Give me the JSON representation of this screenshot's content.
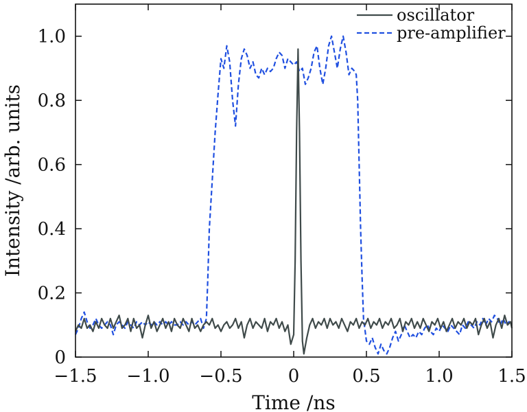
{
  "chart_data": {
    "type": "line",
    "title": "",
    "xlabel": "Time /ns",
    "ylabel": "Intensity /arb. units",
    "xlim": [
      -1.5,
      1.5
    ],
    "ylim": [
      0,
      1.1
    ],
    "xticks": [
      -1.5,
      -1.0,
      -0.5,
      0,
      0.5,
      1.0,
      1.5
    ],
    "xtick_labels": [
      "−1.5",
      "−1.0",
      "−0.5",
      "0",
      "0.5",
      "1.0",
      "1.5"
    ],
    "yticks": [
      0,
      0.2,
      0.4,
      0.6,
      0.8,
      1.0
    ],
    "ytick_labels": [
      "0",
      "0.2",
      "0.4",
      "0.6",
      "0.8",
      "1.0"
    ],
    "grid": false,
    "legend_position": "top-right",
    "series": [
      {
        "name": "oscillator",
        "color": "#3f4a4a",
        "style": "solid",
        "points": [
          [
            -1.5,
            0.08
          ],
          [
            -1.48,
            0.1
          ],
          [
            -1.46,
            0.09
          ],
          [
            -1.44,
            0.12
          ],
          [
            -1.42,
            0.09
          ],
          [
            -1.4,
            0.1
          ],
          [
            -1.38,
            0.08
          ],
          [
            -1.36,
            0.11
          ],
          [
            -1.34,
            0.09
          ],
          [
            -1.32,
            0.12
          ],
          [
            -1.3,
            0.1
          ],
          [
            -1.28,
            0.09
          ],
          [
            -1.26,
            0.12
          ],
          [
            -1.24,
            0.09
          ],
          [
            -1.22,
            0.11
          ],
          [
            -1.2,
            0.13
          ],
          [
            -1.18,
            0.09
          ],
          [
            -1.16,
            0.1
          ],
          [
            -1.14,
            0.12
          ],
          [
            -1.12,
            0.08
          ],
          [
            -1.1,
            0.12
          ],
          [
            -1.08,
            0.09
          ],
          [
            -1.06,
            0.1
          ],
          [
            -1.04,
            0.06
          ],
          [
            -1.02,
            0.1
          ],
          [
            -1.0,
            0.13
          ],
          [
            -0.98,
            0.09
          ],
          [
            -0.96,
            0.11
          ],
          [
            -0.94,
            0.08
          ],
          [
            -0.92,
            0.1
          ],
          [
            -0.9,
            0.12
          ],
          [
            -0.88,
            0.09
          ],
          [
            -0.86,
            0.11
          ],
          [
            -0.84,
            0.08
          ],
          [
            -0.82,
            0.12
          ],
          [
            -0.8,
            0.1
          ],
          [
            -0.78,
            0.09
          ],
          [
            -0.76,
            0.12
          ],
          [
            -0.74,
            0.1
          ],
          [
            -0.72,
            0.08
          ],
          [
            -0.7,
            0.12
          ],
          [
            -0.68,
            0.09
          ],
          [
            -0.66,
            0.1
          ],
          [
            -0.64,
            0.08
          ],
          [
            -0.62,
            0.1
          ],
          [
            -0.6,
            0.11
          ],
          [
            -0.58,
            0.1
          ],
          [
            -0.56,
            0.12
          ],
          [
            -0.54,
            0.09
          ],
          [
            -0.52,
            0.1
          ],
          [
            -0.5,
            0.08
          ],
          [
            -0.48,
            0.1
          ],
          [
            -0.46,
            0.11
          ],
          [
            -0.44,
            0.09
          ],
          [
            -0.42,
            0.1
          ],
          [
            -0.4,
            0.12
          ],
          [
            -0.38,
            0.09
          ],
          [
            -0.36,
            0.11
          ],
          [
            -0.34,
            0.06
          ],
          [
            -0.32,
            0.1
          ],
          [
            -0.3,
            0.12
          ],
          [
            -0.28,
            0.09
          ],
          [
            -0.26,
            0.11
          ],
          [
            -0.24,
            0.1
          ],
          [
            -0.22,
            0.09
          ],
          [
            -0.2,
            0.12
          ],
          [
            -0.18,
            0.08
          ],
          [
            -0.16,
            0.11
          ],
          [
            -0.14,
            0.1
          ],
          [
            -0.12,
            0.12
          ],
          [
            -0.1,
            0.09
          ],
          [
            -0.08,
            0.11
          ],
          [
            -0.06,
            0.08
          ],
          [
            -0.04,
            0.1
          ],
          [
            -0.02,
            0.04
          ],
          [
            0.0,
            0.07
          ],
          [
            0.01,
            0.3
          ],
          [
            0.02,
            0.7
          ],
          [
            0.03,
            0.96
          ],
          [
            0.04,
            0.7
          ],
          [
            0.05,
            0.3
          ],
          [
            0.06,
            0.05
          ],
          [
            0.07,
            0.01
          ],
          [
            0.09,
            0.06
          ],
          [
            0.11,
            0.1
          ],
          [
            0.13,
            0.12
          ],
          [
            0.15,
            0.09
          ],
          [
            0.17,
            0.11
          ],
          [
            0.19,
            0.1
          ],
          [
            0.21,
            0.12
          ],
          [
            0.23,
            0.09
          ],
          [
            0.25,
            0.12
          ],
          [
            0.27,
            0.1
          ],
          [
            0.29,
            0.11
          ],
          [
            0.31,
            0.09
          ],
          [
            0.33,
            0.12
          ],
          [
            0.35,
            0.1
          ],
          [
            0.37,
            0.08
          ],
          [
            0.39,
            0.11
          ],
          [
            0.41,
            0.1
          ],
          [
            0.43,
            0.12
          ],
          [
            0.45,
            0.09
          ],
          [
            0.47,
            0.11
          ],
          [
            0.49,
            0.1
          ],
          [
            0.51,
            0.12
          ],
          [
            0.53,
            0.09
          ],
          [
            0.55,
            0.11
          ],
          [
            0.57,
            0.1
          ],
          [
            0.59,
            0.12
          ],
          [
            0.61,
            0.09
          ],
          [
            0.63,
            0.11
          ],
          [
            0.65,
            0.1
          ],
          [
            0.67,
            0.12
          ],
          [
            0.69,
            0.09
          ],
          [
            0.71,
            0.1
          ],
          [
            0.73,
            0.12
          ],
          [
            0.75,
            0.08
          ],
          [
            0.77,
            0.11
          ],
          [
            0.79,
            0.1
          ],
          [
            0.81,
            0.12
          ],
          [
            0.83,
            0.09
          ],
          [
            0.85,
            0.11
          ],
          [
            0.87,
            0.09
          ],
          [
            0.89,
            0.12
          ],
          [
            0.91,
            0.1
          ],
          [
            0.93,
            0.08
          ],
          [
            0.95,
            0.11
          ],
          [
            0.97,
            0.1
          ],
          [
            0.99,
            0.12
          ],
          [
            1.01,
            0.09
          ],
          [
            1.03,
            0.11
          ],
          [
            1.05,
            0.08
          ],
          [
            1.07,
            0.1
          ],
          [
            1.09,
            0.12
          ],
          [
            1.11,
            0.09
          ],
          [
            1.13,
            0.11
          ],
          [
            1.15,
            0.1
          ],
          [
            1.17,
            0.12
          ],
          [
            1.19,
            0.09
          ],
          [
            1.21,
            0.11
          ],
          [
            1.23,
            0.1
          ],
          [
            1.25,
            0.12
          ],
          [
            1.27,
            0.07
          ],
          [
            1.29,
            0.1
          ],
          [
            1.31,
            0.12
          ],
          [
            1.33,
            0.09
          ],
          [
            1.35,
            0.11
          ],
          [
            1.37,
            0.06
          ],
          [
            1.39,
            0.1
          ],
          [
            1.41,
            0.12
          ],
          [
            1.43,
            0.09
          ],
          [
            1.45,
            0.13
          ],
          [
            1.47,
            0.1
          ],
          [
            1.49,
            0.11
          ],
          [
            1.5,
            0.09
          ]
        ]
      },
      {
        "name": "pre-amplifier",
        "color": "#1f4fe0",
        "style": "dashed",
        "points": [
          [
            -1.5,
            0.07
          ],
          [
            -1.48,
            0.09
          ],
          [
            -1.46,
            0.12
          ],
          [
            -1.44,
            0.14
          ],
          [
            -1.42,
            0.11
          ],
          [
            -1.4,
            0.09
          ],
          [
            -1.38,
            0.1
          ],
          [
            -1.36,
            0.12
          ],
          [
            -1.34,
            0.1
          ],
          [
            -1.32,
            0.09
          ],
          [
            -1.3,
            0.1
          ],
          [
            -1.28,
            0.11
          ],
          [
            -1.26,
            0.1
          ],
          [
            -1.24,
            0.07
          ],
          [
            -1.22,
            0.1
          ],
          [
            -1.2,
            0.11
          ],
          [
            -1.18,
            0.1
          ],
          [
            -1.16,
            0.09
          ],
          [
            -1.14,
            0.11
          ],
          [
            -1.12,
            0.1
          ],
          [
            -1.1,
            0.09
          ],
          [
            -1.08,
            0.11
          ],
          [
            -1.06,
            0.1
          ],
          [
            -1.04,
            0.11
          ],
          [
            -1.02,
            0.1
          ],
          [
            -1.0,
            0.11
          ],
          [
            -0.98,
            0.1
          ],
          [
            -0.96,
            0.11
          ],
          [
            -0.94,
            0.1
          ],
          [
            -0.92,
            0.11
          ],
          [
            -0.9,
            0.1
          ],
          [
            -0.88,
            0.11
          ],
          [
            -0.86,
            0.1
          ],
          [
            -0.84,
            0.11
          ],
          [
            -0.82,
            0.1
          ],
          [
            -0.8,
            0.1
          ],
          [
            -0.78,
            0.11
          ],
          [
            -0.76,
            0.1
          ],
          [
            -0.74,
            0.11
          ],
          [
            -0.72,
            0.1
          ],
          [
            -0.7,
            0.11
          ],
          [
            -0.68,
            0.1
          ],
          [
            -0.66,
            0.11
          ],
          [
            -0.64,
            0.12
          ],
          [
            -0.62,
            0.09
          ],
          [
            -0.6,
            0.12
          ],
          [
            -0.59,
            0.25
          ],
          [
            -0.58,
            0.4
          ],
          [
            -0.56,
            0.55
          ],
          [
            -0.54,
            0.7
          ],
          [
            -0.52,
            0.82
          ],
          [
            -0.5,
            0.93
          ],
          [
            -0.48,
            0.9
          ],
          [
            -0.46,
            0.97
          ],
          [
            -0.44,
            0.92
          ],
          [
            -0.42,
            0.8
          ],
          [
            -0.4,
            0.72
          ],
          [
            -0.38,
            0.85
          ],
          [
            -0.36,
            0.93
          ],
          [
            -0.34,
            0.96
          ],
          [
            -0.32,
            0.94
          ],
          [
            -0.3,
            0.9
          ],
          [
            -0.28,
            0.92
          ],
          [
            -0.26,
            0.88
          ],
          [
            -0.24,
            0.87
          ],
          [
            -0.22,
            0.9
          ],
          [
            -0.2,
            0.88
          ],
          [
            -0.18,
            0.9
          ],
          [
            -0.16,
            0.89
          ],
          [
            -0.14,
            0.9
          ],
          [
            -0.12,
            0.93
          ],
          [
            -0.1,
            0.95
          ],
          [
            -0.08,
            0.94
          ],
          [
            -0.06,
            0.9
          ],
          [
            -0.04,
            0.93
          ],
          [
            -0.02,
            0.92
          ],
          [
            0.0,
            0.91
          ],
          [
            0.02,
            0.92
          ],
          [
            0.04,
            0.89
          ],
          [
            0.06,
            0.9
          ],
          [
            0.08,
            0.85
          ],
          [
            0.1,
            0.87
          ],
          [
            0.12,
            0.9
          ],
          [
            0.14,
            0.95
          ],
          [
            0.16,
            0.97
          ],
          [
            0.18,
            0.9
          ],
          [
            0.2,
            0.85
          ],
          [
            0.22,
            0.9
          ],
          [
            0.24,
            0.97
          ],
          [
            0.26,
            1.0
          ],
          [
            0.28,
            0.95
          ],
          [
            0.3,
            0.9
          ],
          [
            0.32,
            0.96
          ],
          [
            0.34,
            1.0
          ],
          [
            0.36,
            0.95
          ],
          [
            0.38,
            0.88
          ],
          [
            0.4,
            0.9
          ],
          [
            0.42,
            0.89
          ],
          [
            0.43,
            0.88
          ],
          [
            0.44,
            0.8
          ],
          [
            0.45,
            0.6
          ],
          [
            0.46,
            0.4
          ],
          [
            0.47,
            0.25
          ],
          [
            0.48,
            0.12
          ],
          [
            0.5,
            0.05
          ],
          [
            0.52,
            0.04
          ],
          [
            0.54,
            0.06
          ],
          [
            0.56,
            0.03
          ],
          [
            0.58,
            0.01
          ],
          [
            0.6,
            0.04
          ],
          [
            0.62,
            0.02
          ],
          [
            0.64,
            0.01
          ],
          [
            0.66,
            0.03
          ],
          [
            0.68,
            0.06
          ],
          [
            0.7,
            0.08
          ],
          [
            0.72,
            0.05
          ],
          [
            0.74,
            0.07
          ],
          [
            0.76,
            0.1
          ],
          [
            0.78,
            0.08
          ],
          [
            0.8,
            0.06
          ],
          [
            0.82,
            0.07
          ],
          [
            0.84,
            0.06
          ],
          [
            0.86,
            0.08
          ],
          [
            0.88,
            0.07
          ],
          [
            0.9,
            0.09
          ],
          [
            0.92,
            0.1
          ],
          [
            0.94,
            0.08
          ],
          [
            0.96,
            0.07
          ],
          [
            0.98,
            0.09
          ],
          [
            1.0,
            0.08
          ],
          [
            1.02,
            0.1
          ],
          [
            1.04,
            0.09
          ],
          [
            1.06,
            0.08
          ],
          [
            1.08,
            0.1
          ],
          [
            1.1,
            0.09
          ],
          [
            1.12,
            0.08
          ],
          [
            1.14,
            0.07
          ],
          [
            1.16,
            0.1
          ],
          [
            1.18,
            0.09
          ],
          [
            1.2,
            0.11
          ],
          [
            1.22,
            0.1
          ],
          [
            1.24,
            0.09
          ],
          [
            1.26,
            0.11
          ],
          [
            1.28,
            0.1
          ],
          [
            1.3,
            0.12
          ],
          [
            1.32,
            0.1
          ],
          [
            1.34,
            0.12
          ],
          [
            1.36,
            0.11
          ],
          [
            1.38,
            0.13
          ],
          [
            1.4,
            0.12
          ],
          [
            1.42,
            0.1
          ],
          [
            1.44,
            0.12
          ],
          [
            1.46,
            0.1
          ],
          [
            1.48,
            0.11
          ],
          [
            1.5,
            0.1
          ]
        ]
      }
    ]
  }
}
